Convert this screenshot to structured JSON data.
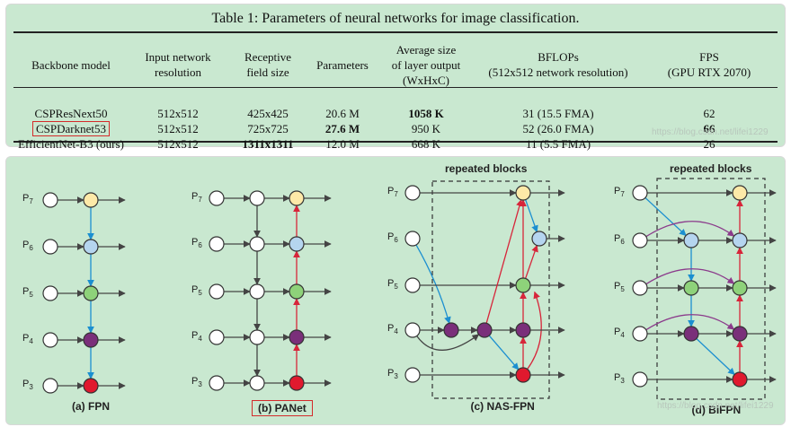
{
  "table": {
    "caption": "Table 1: Parameters of neural networks for image classification.",
    "headers": [
      [
        "Backbone model"
      ],
      [
        "Input network",
        "resolution"
      ],
      [
        "Receptive",
        "field size"
      ],
      [
        "Parameters"
      ],
      [
        "Average size",
        "of layer output",
        "(WxHxC)"
      ],
      [
        "BFLOPs",
        "(512x512 network resolution)"
      ],
      [
        "FPS",
        "(GPU RTX 2070)"
      ]
    ],
    "rows": [
      {
        "cells": [
          "CSPResNext50",
          "512x512",
          "425x425",
          "20.6 M",
          "1058 K",
          "31 (15.5 FMA)",
          "62"
        ],
        "bold": [
          4
        ],
        "boxed": false
      },
      {
        "cells": [
          "CSPDarknet53",
          "512x512",
          "725x725",
          "27.6 M",
          "950 K",
          "52 (26.0 FMA)",
          "66"
        ],
        "bold": [
          3,
          6
        ],
        "boxed": true
      },
      {
        "cells": [
          "EfficientNet-B3 (ours)",
          "512x512",
          "1311x1311",
          "12.0 M",
          "668 K",
          "11 (5.5 FMA)",
          "26"
        ],
        "bold": [
          2
        ],
        "boxed": false
      }
    ],
    "watermark": "https://blog.csdn.net/lifei1229"
  },
  "figure": {
    "level_labels": [
      "P7",
      "P6",
      "P5",
      "P4",
      "P3"
    ],
    "repeated_label": "repeated blocks",
    "panels": [
      {
        "key": "fpn",
        "label": "(a) FPN",
        "boxed": false
      },
      {
        "key": "panet",
        "label": "(b) PANet",
        "boxed": true
      },
      {
        "key": "nasfpn",
        "label": "(c) NAS-FPN",
        "boxed": false
      },
      {
        "key": "bifpn",
        "label": "(d) BiFPN",
        "boxed": false
      }
    ],
    "watermark": "https://blog.csdn.net/lifei1229",
    "colors": {
      "p7": "#fde9a8",
      "p6": "#b5d5ef",
      "p5": "#8ed27a",
      "p4": "#7a2f7a",
      "p3": "#e0192e",
      "blue_edge": "#1b8fd0",
      "red_edge": "#d7253a",
      "purple_edge": "#8b3a8b",
      "dark_edge": "#444444"
    }
  }
}
